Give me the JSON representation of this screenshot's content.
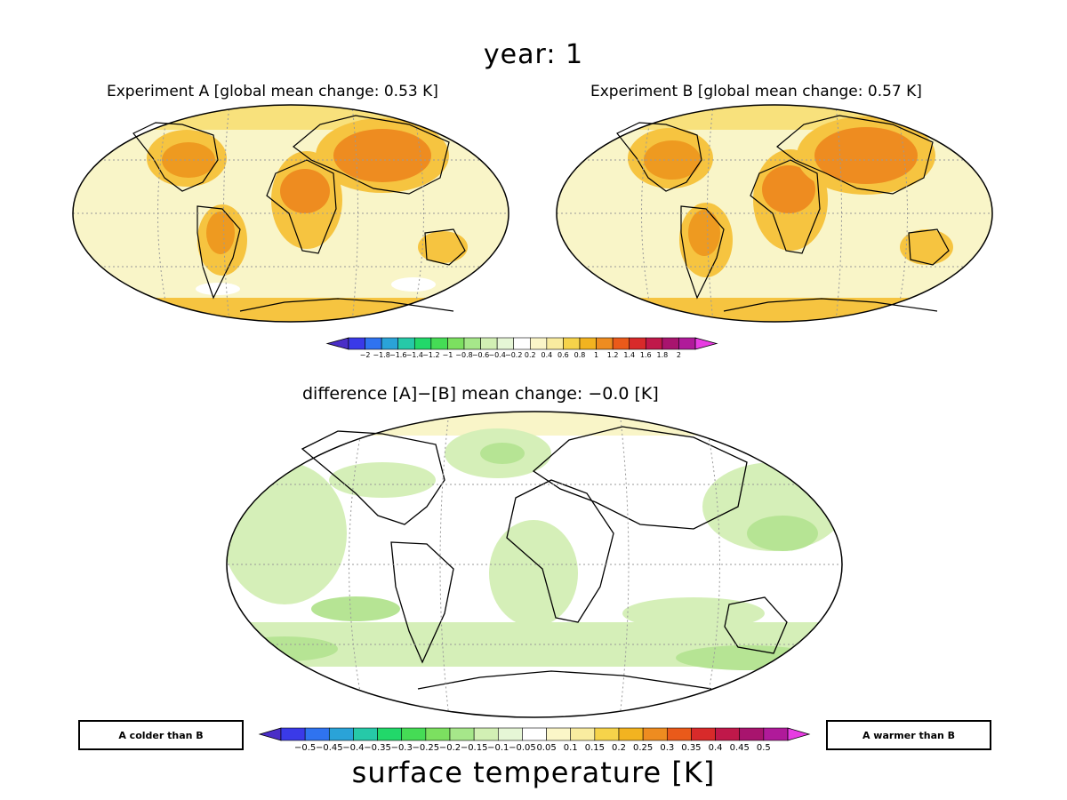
{
  "header": {
    "title": "year:  1"
  },
  "panels": {
    "a": {
      "title": "Experiment A [global mean change: 0.53 K]"
    },
    "b": {
      "title": "Experiment B [global mean change: 0.57 K]"
    },
    "diff": {
      "title": "difference [A]−[B]      mean change: −0.0 [K]"
    }
  },
  "colorbar_top": {
    "labels": [
      "−2",
      "−1.8",
      "−1.6",
      "−1.4",
      "−1.2",
      "−1",
      "−0.8",
      "−0.6",
      "−0.4",
      "−0.2",
      "0.2",
      "0.4",
      "0.6",
      "0.8",
      "1",
      "1.2",
      "1.4",
      "1.6",
      "1.8",
      "2"
    ],
    "colors": [
      "#4a2ec7",
      "#3a3ae8",
      "#2f73f0",
      "#2aa3d8",
      "#26c9a8",
      "#22d86a",
      "#45dc55",
      "#7ce060",
      "#a6e78a",
      "#d2f0b4",
      "#e6f6d6",
      "#ffffff",
      "#fbf6c8",
      "#f9eca0",
      "#f6d34a",
      "#f2b320",
      "#ee8c20",
      "#ea5a1a",
      "#d82a2a",
      "#c0184a",
      "#a8146e",
      "#b01a9a",
      "#e83ce2"
    ]
  },
  "colorbar_bottom": {
    "labels": [
      "−0.5",
      "−0.45",
      "−0.4",
      "−0.35",
      "−0.3",
      "−0.25",
      "−0.2",
      "−0.15",
      "−0.1",
      "−0.05",
      "0.05",
      "0.1",
      "0.15",
      "0.2",
      "0.25",
      "0.3",
      "0.35",
      "0.4",
      "0.45",
      "0.5"
    ],
    "colors": [
      "#4a2ec7",
      "#3a3ae8",
      "#2f73f0",
      "#2aa3d8",
      "#26c9a8",
      "#22d86a",
      "#45dc55",
      "#7ce060",
      "#a6e78a",
      "#d2f0b4",
      "#e6f6d6",
      "#ffffff",
      "#fbf6c8",
      "#f9eca0",
      "#f6d34a",
      "#f2b320",
      "#ee8c20",
      "#ea5a1a",
      "#d82a2a",
      "#c0184a",
      "#a8146e",
      "#b01a9a",
      "#e83ce2"
    ]
  },
  "legend_notes": {
    "colder": "A colder than B",
    "warmer": "A warmer than B"
  },
  "footer": {
    "variable": "surface temperature [K]"
  },
  "colors": {
    "ocean_a": "#f9f5c8",
    "land_warm": "#f6c440",
    "land_hot": "#ee8c20",
    "diff_green": "#d5efb8",
    "diff_green2": "#b6e494"
  }
}
